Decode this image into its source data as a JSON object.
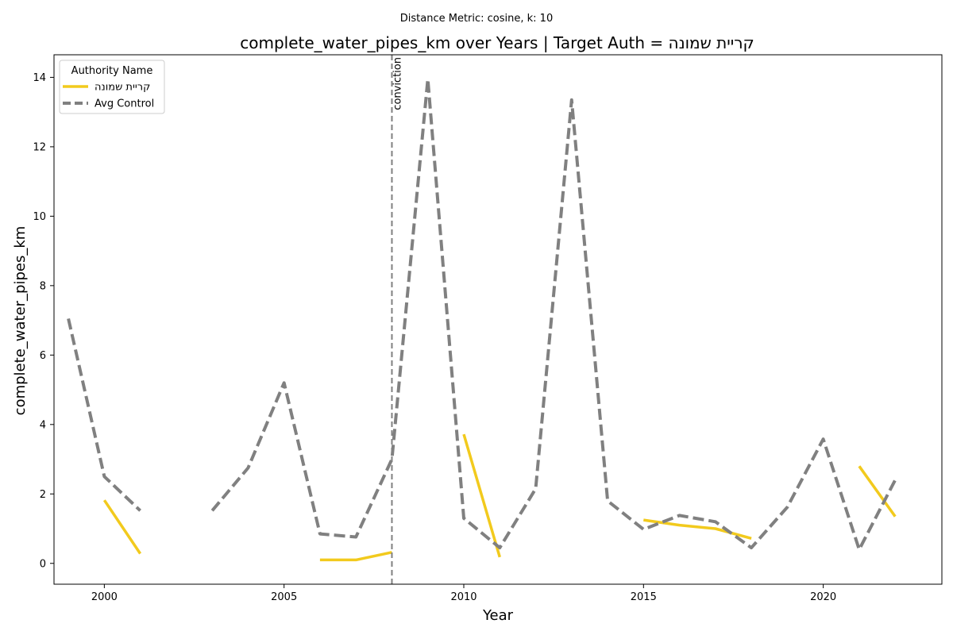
{
  "chart_data": {
    "type": "line",
    "suptitle": "Distance Metric: cosine, k: 10",
    "title": "complete_water_pipes_km over Years | Target Auth = קריית שמונה",
    "xlabel": "Year",
    "ylabel": "complete_water_pipes_km",
    "xlim": [
      1998.6,
      2023.3
    ],
    "ylim": [
      -0.6,
      14.65
    ],
    "xticks": [
      2000,
      2005,
      2010,
      2015,
      2020
    ],
    "yticks": [
      0,
      2,
      4,
      6,
      8,
      10,
      12,
      14
    ],
    "grid": false,
    "legend": {
      "title": "Authority Name",
      "placement": "top-left"
    },
    "series": [
      {
        "name": "קריית שמונה",
        "color": "#f2ca1d",
        "style": "solid",
        "points": [
          [
            2000,
            1.82
          ],
          [
            2001,
            0.28
          ],
          [
            2002,
            null
          ],
          [
            2003,
            null
          ],
          [
            2004,
            null
          ],
          [
            2005,
            null
          ],
          [
            2006,
            0.1
          ],
          [
            2007,
            0.1
          ],
          [
            2008,
            0.32
          ],
          [
            2009,
            null
          ],
          [
            2010,
            3.72
          ],
          [
            2011,
            0.18
          ],
          [
            2012,
            null
          ],
          [
            2013,
            null
          ],
          [
            2014,
            null
          ],
          [
            2015,
            1.25
          ],
          [
            2016,
            1.1
          ],
          [
            2017,
            1.0
          ],
          [
            2018,
            0.72
          ],
          [
            2019,
            null
          ],
          [
            2020,
            null
          ],
          [
            2021,
            2.8
          ],
          [
            2022,
            1.35
          ]
        ]
      },
      {
        "name": "Avg Control",
        "color": "#808080",
        "style": "dashed",
        "points": [
          [
            1999,
            7.05
          ],
          [
            2000,
            2.5
          ],
          [
            2001,
            1.52
          ],
          [
            2002,
            null
          ],
          [
            2003,
            1.52
          ],
          [
            2004,
            2.75
          ],
          [
            2005,
            5.2
          ],
          [
            2006,
            0.85
          ],
          [
            2007,
            0.76
          ],
          [
            2008,
            3.0
          ],
          [
            2009,
            13.95
          ],
          [
            2010,
            1.3
          ],
          [
            2011,
            0.45
          ],
          [
            2012,
            2.15
          ],
          [
            2013,
            13.35
          ],
          [
            2014,
            1.8
          ],
          [
            2015,
            0.98
          ],
          [
            2016,
            1.38
          ],
          [
            2017,
            1.2
          ],
          [
            2018,
            0.45
          ],
          [
            2019,
            1.62
          ],
          [
            2020,
            3.58
          ],
          [
            2021,
            0.4
          ],
          [
            2022,
            2.4
          ]
        ]
      }
    ],
    "annotations": [
      {
        "x": 2008,
        "label": "conviction",
        "color": "#808080",
        "style": "dashed"
      }
    ]
  }
}
